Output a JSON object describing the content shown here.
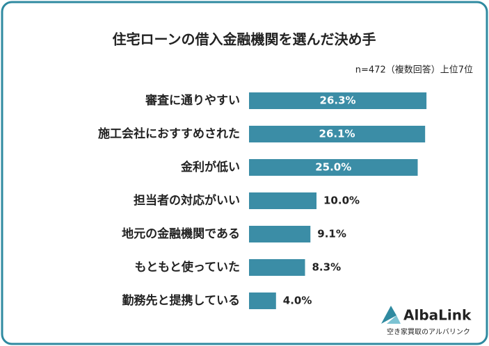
{
  "chart_data": {
    "type": "bar",
    "orientation": "horizontal",
    "title": "住宅ローンの借入金融機関を選んだ決め手",
    "subtitle": "n=472（複数回答）上位7位",
    "categories": [
      "審査に通りやすい",
      "施工会社におすすめされた",
      "金利が低い",
      "担当者の対応がいい",
      "地元の金融機関である",
      "もともと使っていた",
      "勤務先と提携している"
    ],
    "values": [
      26.3,
      26.1,
      25.0,
      10.0,
      9.1,
      8.3,
      4.0
    ],
    "value_labels": [
      "26.3%",
      "26.1%",
      "25.0%",
      "10.0%",
      "9.1%",
      "8.3%",
      "4.0%"
    ],
    "color": "#3b8da6",
    "xlim": [
      0,
      30
    ]
  },
  "logo": {
    "name": "AlbaLink",
    "tagline": "空き家買取のアルバリンク"
  }
}
